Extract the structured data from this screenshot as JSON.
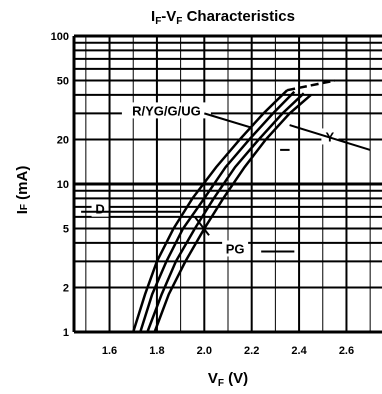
{
  "chart_data": {
    "type": "line",
    "title_main": "I",
    "title_sub1": "F",
    "title_mid": "-V",
    "title_sub2": "F",
    "title_rest": "  Characteristics",
    "ylabel_main": "I",
    "ylabel_sub": "F",
    "ylabel_rest": " (mA)",
    "xlabel_main": "V",
    "xlabel_sub": "F",
    "xlabel_rest": " (V)",
    "x_scale": "linear",
    "y_scale": "log",
    "xlim": [
      1.45,
      2.75
    ],
    "ylim": [
      1,
      100
    ],
    "grid": true,
    "x_ticks": [
      {
        "v": 1.6,
        "label": "1.6"
      },
      {
        "v": 1.8,
        "label": "1.8"
      },
      {
        "v": 2.0,
        "label": "2.0"
      },
      {
        "v": 2.2,
        "label": "2.2"
      },
      {
        "v": 2.4,
        "label": "2.4"
      },
      {
        "v": 2.6,
        "label": "2.6"
      }
    ],
    "y_ticks": [
      {
        "v": 1,
        "label": "1"
      },
      {
        "v": 2,
        "label": "2"
      },
      {
        "v": 5,
        "label": "5"
      },
      {
        "v": 10,
        "label": "10"
      },
      {
        "v": 20,
        "label": "20"
      },
      {
        "v": 50,
        "label": "50"
      },
      {
        "v": 100,
        "label": "100"
      }
    ],
    "series": [
      {
        "name": "D",
        "x": [
          1.7,
          1.75,
          1.8,
          1.87,
          1.95,
          2.05,
          2.15,
          2.25,
          2.35
        ],
        "y": [
          1,
          1.8,
          3,
          5,
          8,
          13,
          20,
          30,
          43
        ],
        "dashed_x": [
          2.35,
          2.55
        ],
        "dashed_y": [
          43,
          50
        ]
      },
      {
        "name": "R/YG/G/UG",
        "x": [
          1.73,
          1.78,
          1.84,
          1.91,
          2.0,
          2.09,
          2.19,
          2.29,
          2.38
        ],
        "y": [
          1,
          1.8,
          3,
          5,
          8,
          13,
          20,
          30,
          42
        ]
      },
      {
        "name": "PG",
        "x": [
          1.76,
          1.82,
          1.88,
          1.96,
          2.04,
          2.13,
          2.23,
          2.33,
          2.42
        ],
        "y": [
          1,
          1.8,
          3,
          5,
          8,
          13,
          20,
          30,
          41
        ]
      },
      {
        "name": "Y",
        "x": [
          1.79,
          1.85,
          1.92,
          2.0,
          2.08,
          2.17,
          2.26,
          2.36,
          2.45
        ],
        "y": [
          1,
          1.8,
          3,
          5,
          8,
          13,
          20,
          30,
          40
        ]
      }
    ],
    "annotations": [
      {
        "text": "R/YG/G/UG",
        "x": 1.84,
        "y": 30
      },
      {
        "text": "Y",
        "x": 2.53,
        "y": 20
      },
      {
        "text": "D",
        "x": 1.56,
        "y": 6.5
      },
      {
        "text": "PG",
        "x": 2.13,
        "y": 3.5
      }
    ]
  }
}
